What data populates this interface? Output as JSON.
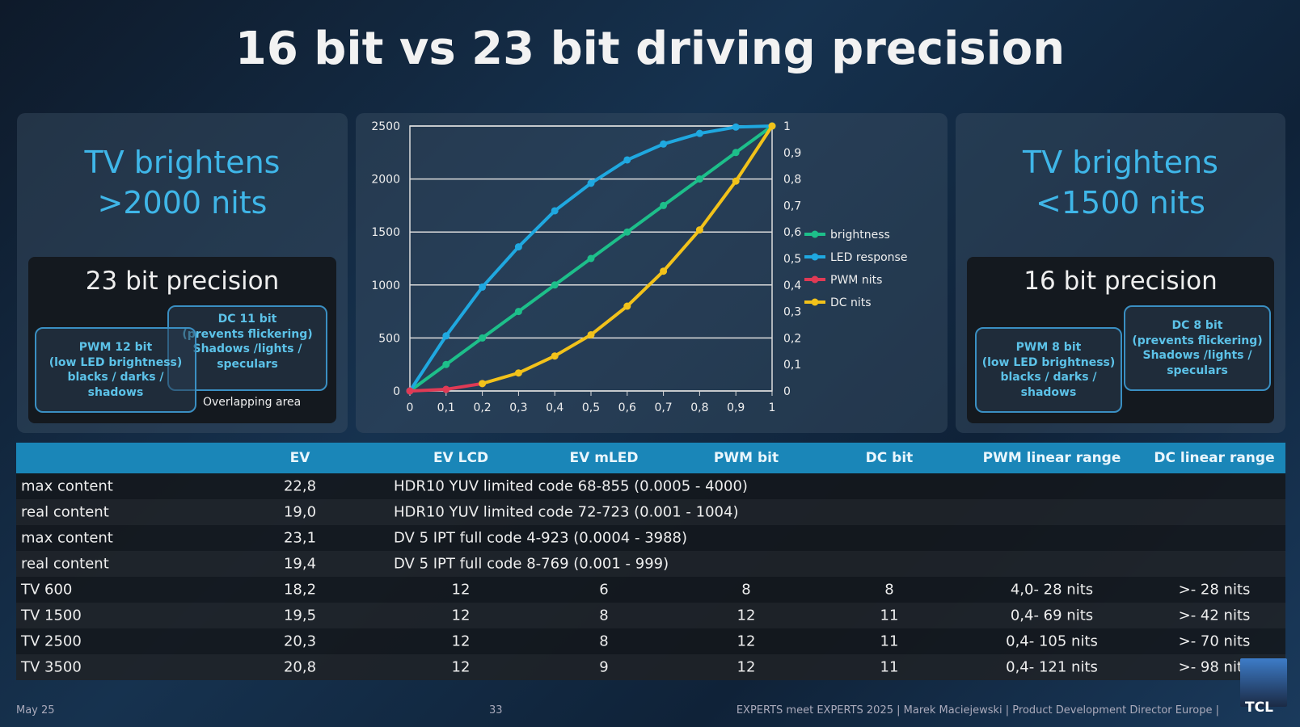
{
  "title": "16 bit vs 23 bit driving precision",
  "left_panel": {
    "heading_line1": "TV brightens",
    "heading_line2": ">2000 nits",
    "precision": "23 bit precision",
    "pwm_box": [
      "PWM 12 bit",
      "(low LED brightness)",
      "blacks / darks /",
      "shadows"
    ],
    "dc_box": [
      "DC 11 bit",
      "(prevents flickering)",
      "Shadows /lights /",
      "speculars"
    ],
    "overlap_label": "Overlapping area"
  },
  "right_panel": {
    "heading_line1": "TV brightens",
    "heading_line2": "<1500 nits",
    "precision": "16 bit precision",
    "pwm_box": [
      "PWM 8 bit",
      "(low LED brightness)",
      "blacks / darks /",
      "shadows"
    ],
    "dc_box": [
      "DC 8 bit",
      "(prevents flickering)",
      "Shadows /lights /",
      "speculars"
    ]
  },
  "chart_data": {
    "type": "line",
    "x": [
      0,
      0.1,
      0.2,
      0.3,
      0.4,
      0.5,
      0.6,
      0.7,
      0.8,
      0.9,
      1
    ],
    "x_tick_labels": [
      "0",
      "0,1",
      "0,2",
      "0,3",
      "0,4",
      "0,5",
      "0,6",
      "0,7",
      "0,8",
      "0,9",
      "1"
    ],
    "ylim": [
      0,
      2500
    ],
    "y_tick_labels": [
      "0",
      "500",
      "1000",
      "1500",
      "2000",
      "2500"
    ],
    "y2lim": [
      0,
      1
    ],
    "y2_tick_labels": [
      "0",
      "0,1",
      "0,2",
      "0,3",
      "0,4",
      "0,5",
      "0,6",
      "0,7",
      "0,8",
      "0,9",
      "1"
    ],
    "grid": "horizontal",
    "legend": "right",
    "series": [
      {
        "name": "brightness",
        "color": "#1dbf8a",
        "values": [
          0,
          250,
          500,
          750,
          1000,
          1250,
          1500,
          1750,
          2000,
          2250,
          2500
        ]
      },
      {
        "name": "LED response",
        "color": "#1fa8e0",
        "values": [
          0,
          520,
          980,
          1360,
          1700,
          1960,
          2180,
          2330,
          2430,
          2490,
          2500
        ]
      },
      {
        "name": "PWM nits",
        "color": "#e03a55",
        "values": [
          0,
          15,
          70,
          null,
          null,
          null,
          null,
          null,
          null,
          null,
          null
        ]
      },
      {
        "name": "DC nits",
        "color": "#f2c21a",
        "values": [
          null,
          null,
          70,
          170,
          330,
          530,
          800,
          1130,
          1520,
          1980,
          2500
        ]
      }
    ]
  },
  "table": {
    "headers": [
      "",
      "EV",
      "EV LCD",
      "EV mLED",
      "PWM bit",
      "DC bit",
      "PWM linear range",
      "DC linear range"
    ],
    "span_rows": [
      {
        "label": "max content",
        "ev": "22,8",
        "text": "HDR10 YUV limited code 68-855 (0.0005 - 4000)"
      },
      {
        "label": "real content",
        "ev": "19,0",
        "text": "HDR10 YUV limited code 72-723 (0.001 - 1004)"
      },
      {
        "label": "max content",
        "ev": "23,1",
        "text": "DV 5 IPT full code 4-923 (0.0004 - 3988)"
      },
      {
        "label": "real content",
        "ev": "19,4",
        "text": "DV 5 IPT full code 8-769 (0.001 - 999)"
      }
    ],
    "rows": [
      [
        "TV 600",
        "18,2",
        "12",
        "6",
        "8",
        "8",
        "4,0- 28 nits",
        ">- 28 nits"
      ],
      [
        "TV 1500",
        "19,5",
        "12",
        "8",
        "12",
        "11",
        "0,4- 69 nits",
        ">- 42 nits"
      ],
      [
        "TV 2500",
        "20,3",
        "12",
        "8",
        "12",
        "11",
        "0,4- 105 nits",
        ">- 70 nits"
      ],
      [
        "TV 3500",
        "20,8",
        "12",
        "9",
        "12",
        "11",
        "0,4- 121 nits",
        ">- 98 nits"
      ]
    ]
  },
  "footer": {
    "date": "May 25",
    "page": "33",
    "credit": "EXPERTS meet EXPERTS 2025 | Marek Maciejewski | Product Development Director Europe |",
    "logo": "TCL"
  }
}
